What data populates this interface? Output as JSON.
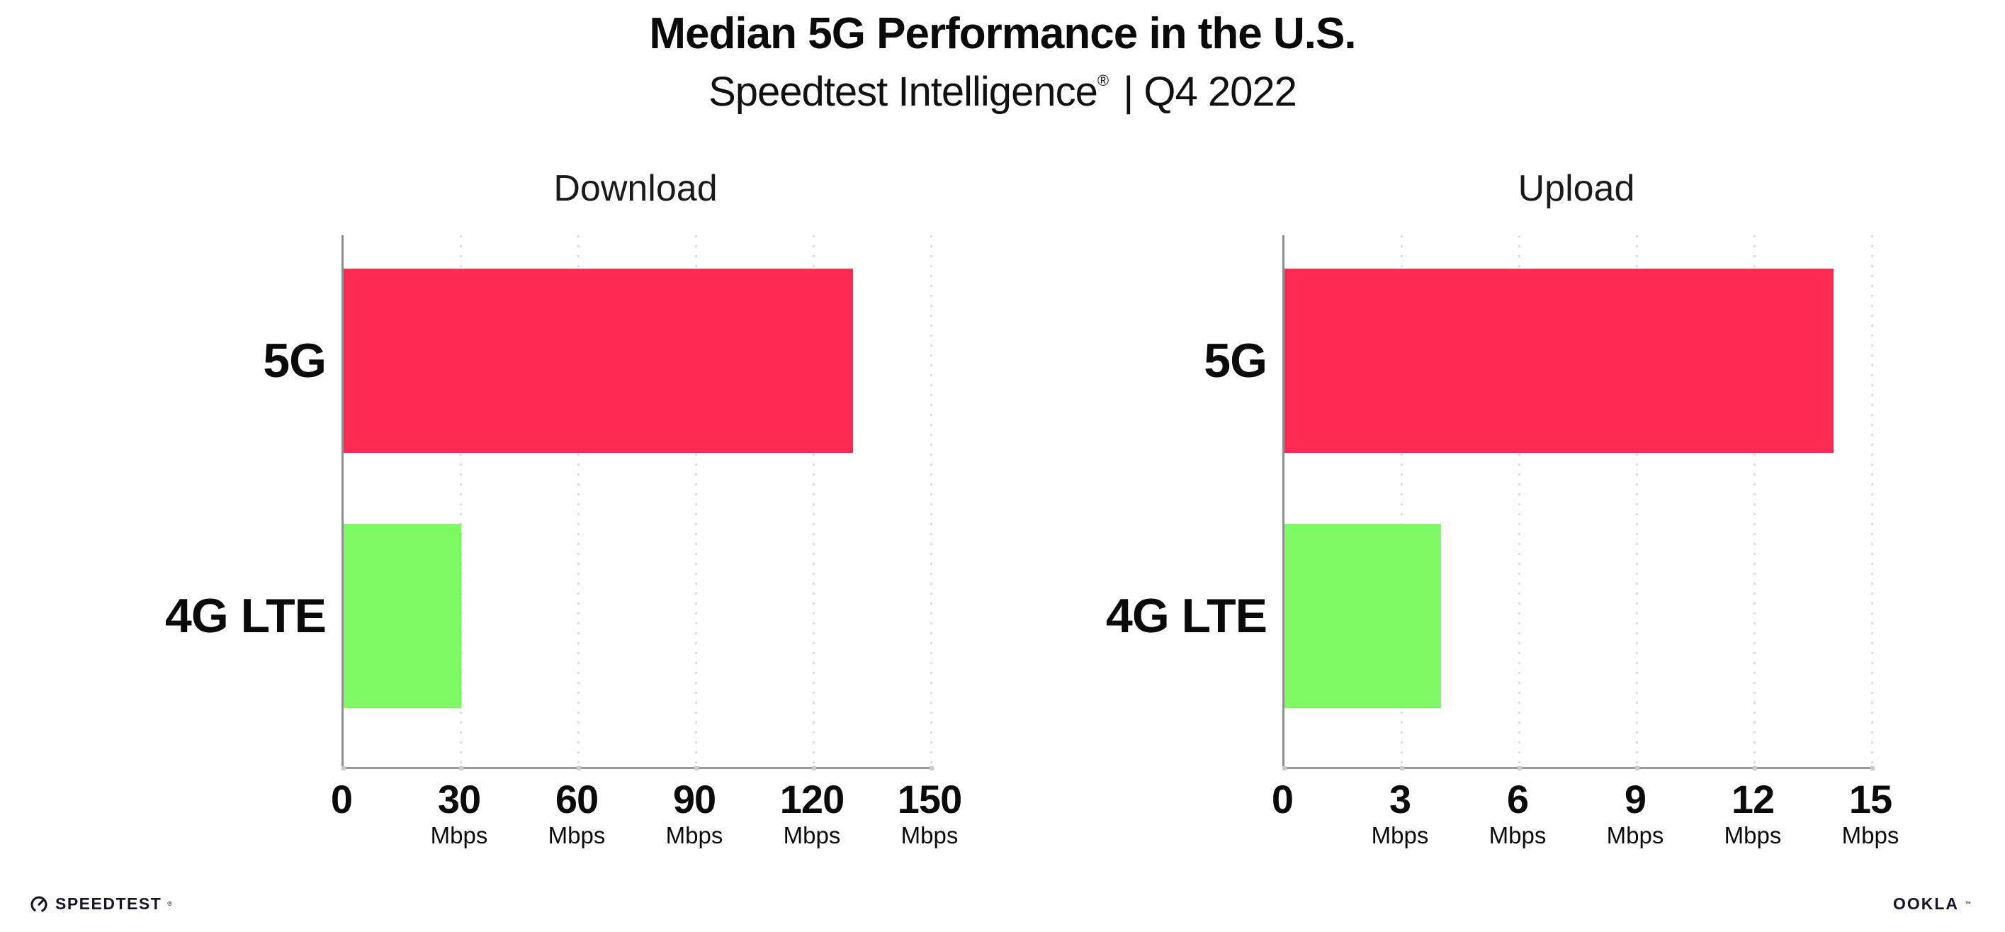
{
  "header": {
    "title": "Median 5G Performance in the U.S.",
    "subtitle_brand": "Speedtest Intelligence",
    "subtitle_reg": "®",
    "subtitle_rest": "| Q4 2022"
  },
  "chart_data": [
    {
      "type": "bar",
      "orientation": "horizontal",
      "title": "Download",
      "categories": [
        "5G",
        "4G LTE"
      ],
      "values": [
        130,
        30
      ],
      "unit": "Mbps",
      "xlim": [
        0,
        150
      ],
      "xticks": [
        0,
        30,
        60,
        90,
        120,
        150
      ],
      "bar_colors": [
        "#FF2B54",
        "#7DFA64"
      ],
      "grid": "dotted-vertical",
      "legend": "none"
    },
    {
      "type": "bar",
      "orientation": "horizontal",
      "title": "Upload",
      "categories": [
        "5G",
        "4G LTE"
      ],
      "values": [
        14,
        4
      ],
      "unit": "Mbps",
      "xlim": [
        0,
        15
      ],
      "xticks": [
        0,
        3,
        6,
        9,
        12,
        15
      ],
      "bar_colors": [
        "#FF2B54",
        "#7DFA64"
      ],
      "grid": "dotted-vertical",
      "legend": "none"
    }
  ],
  "colors": {
    "bar_5g": "#FF2B54",
    "bar_4g_lte": "#7DFA64",
    "gridline": "#D9DBE5",
    "axis_line": "#9A9AA0",
    "text": "#0A0A0A"
  },
  "footer": {
    "speedtest_label": "SPEEDTEST",
    "speedtest_mark": "®",
    "ookla_label": "OOKLA",
    "ookla_mark": "™"
  }
}
